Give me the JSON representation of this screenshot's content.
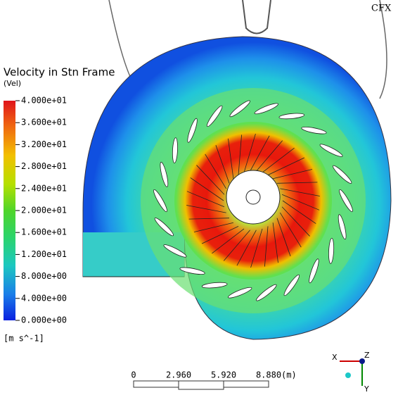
{
  "legend": {
    "title": "Velocity in Stn Frame",
    "variable": "(Vel)",
    "ticks": [
      "4.000e+01",
      "3.600e+01",
      "3.200e+01",
      "2.800e+01",
      "2.400e+01",
      "2.000e+01",
      "1.600e+01",
      "1.200e+01",
      "8.000e+00",
      "4.000e+00",
      "0.000e+00"
    ],
    "unit": "[m s^-1]"
  },
  "scale": {
    "labels": [
      "0",
      "2.960",
      "5.920",
      "8.880"
    ],
    "unit": "(m)"
  },
  "axes": {
    "x": "X",
    "y": "Y",
    "z": "Z"
  },
  "logo": "CFX"
}
